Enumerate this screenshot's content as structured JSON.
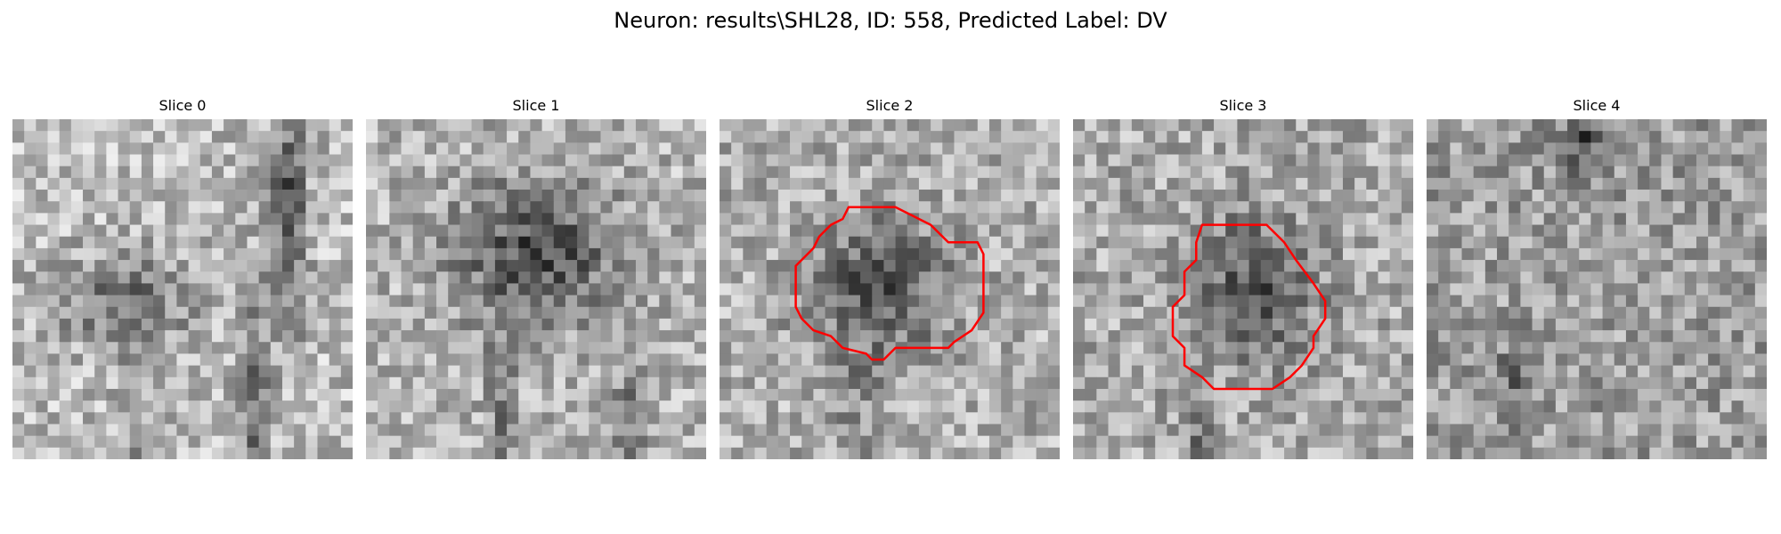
{
  "figure": {
    "title": "Neuron: results\\SHL28, ID: 558, Predicted Label: DV"
  },
  "contour_color": "#ff0000",
  "panels": [
    {
      "title": "Slice 0",
      "has_contour": false
    },
    {
      "title": "Slice 1",
      "has_contour": false
    },
    {
      "title": "Slice 2",
      "has_contour": true
    },
    {
      "title": "Slice 3",
      "has_contour": true
    },
    {
      "title": "Slice 4",
      "has_contour": false
    }
  ]
}
